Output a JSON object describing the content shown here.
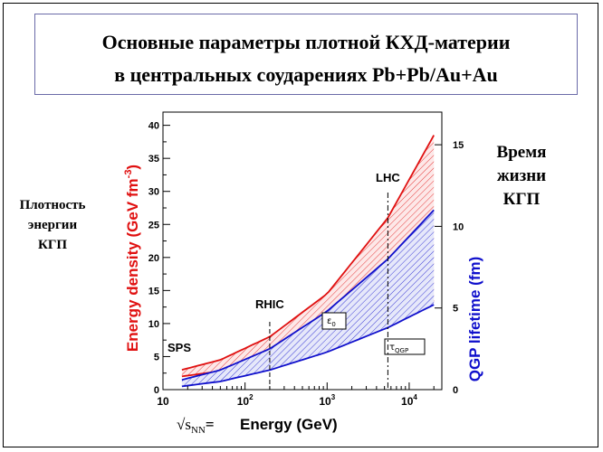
{
  "title": {
    "line1": "Основные параметры плотной КХД-материи",
    "line2": "в центральных соударениях Pb+Pb/Au+Au"
  },
  "left_label": [
    "Плотность",
    "энергии",
    "КГП"
  ],
  "right_label": [
    "Время",
    "жизни",
    "КГП"
  ],
  "chart_data": {
    "type": "area",
    "x_scale": "log",
    "xlim": [
      10,
      25000
    ],
    "xlabel": {
      "prefix": "√s",
      "subscript": "NN",
      "suffix": "=",
      "text": "Energy (GeV)"
    },
    "x_ticks": [
      {
        "value": 10,
        "base": "10",
        "exp": ""
      },
      {
        "value": 100,
        "base": "10",
        "exp": "2"
      },
      {
        "value": 1000,
        "base": "10",
        "exp": "3"
      },
      {
        "value": 10000,
        "base": "10",
        "exp": "4"
      }
    ],
    "left_axis": {
      "label": "Energy density (GeV fm⁻³)",
      "label_base": "Energy density (GeV fm",
      "label_exp": "-3",
      "label_close": ")",
      "color": "#e01010",
      "ylim": [
        0,
        42
      ],
      "ticks": [
        0,
        5,
        10,
        15,
        20,
        25,
        30,
        35,
        40
      ]
    },
    "right_axis": {
      "label": "QGP lifetime (fm)",
      "color": "#1010cc",
      "ylim": [
        0,
        17
      ],
      "ticks": [
        0,
        5,
        10,
        15
      ]
    },
    "series": [
      {
        "name": "ε₀",
        "axis": "left",
        "color": "#e01010",
        "x": [
          17,
          50,
          200,
          1000,
          5500,
          20000
        ],
        "upper": [
          3.0,
          4.5,
          8.0,
          14.5,
          26.0,
          38.5
        ],
        "lower": [
          2.0,
          2.8,
          4.2,
          6.5,
          10.0,
          13.5
        ]
      },
      {
        "name": "τQGP",
        "axis": "right",
        "color": "#1010cc",
        "x": [
          17,
          50,
          200,
          1000,
          5500,
          20000
        ],
        "upper": [
          0.6,
          1.2,
          2.5,
          4.8,
          8.0,
          11.0
        ],
        "lower": [
          0.2,
          0.5,
          1.2,
          2.3,
          3.8,
          5.2
        ]
      }
    ],
    "series_labels": [
      {
        "base": "ε",
        "sub": "0"
      },
      {
        "base": "τ",
        "sub": "QGP"
      }
    ],
    "annotations": [
      {
        "text": "SPS",
        "x": 17
      },
      {
        "text": "RHIC",
        "x": 200
      },
      {
        "text": "LHC",
        "x": 5500
      }
    ]
  }
}
